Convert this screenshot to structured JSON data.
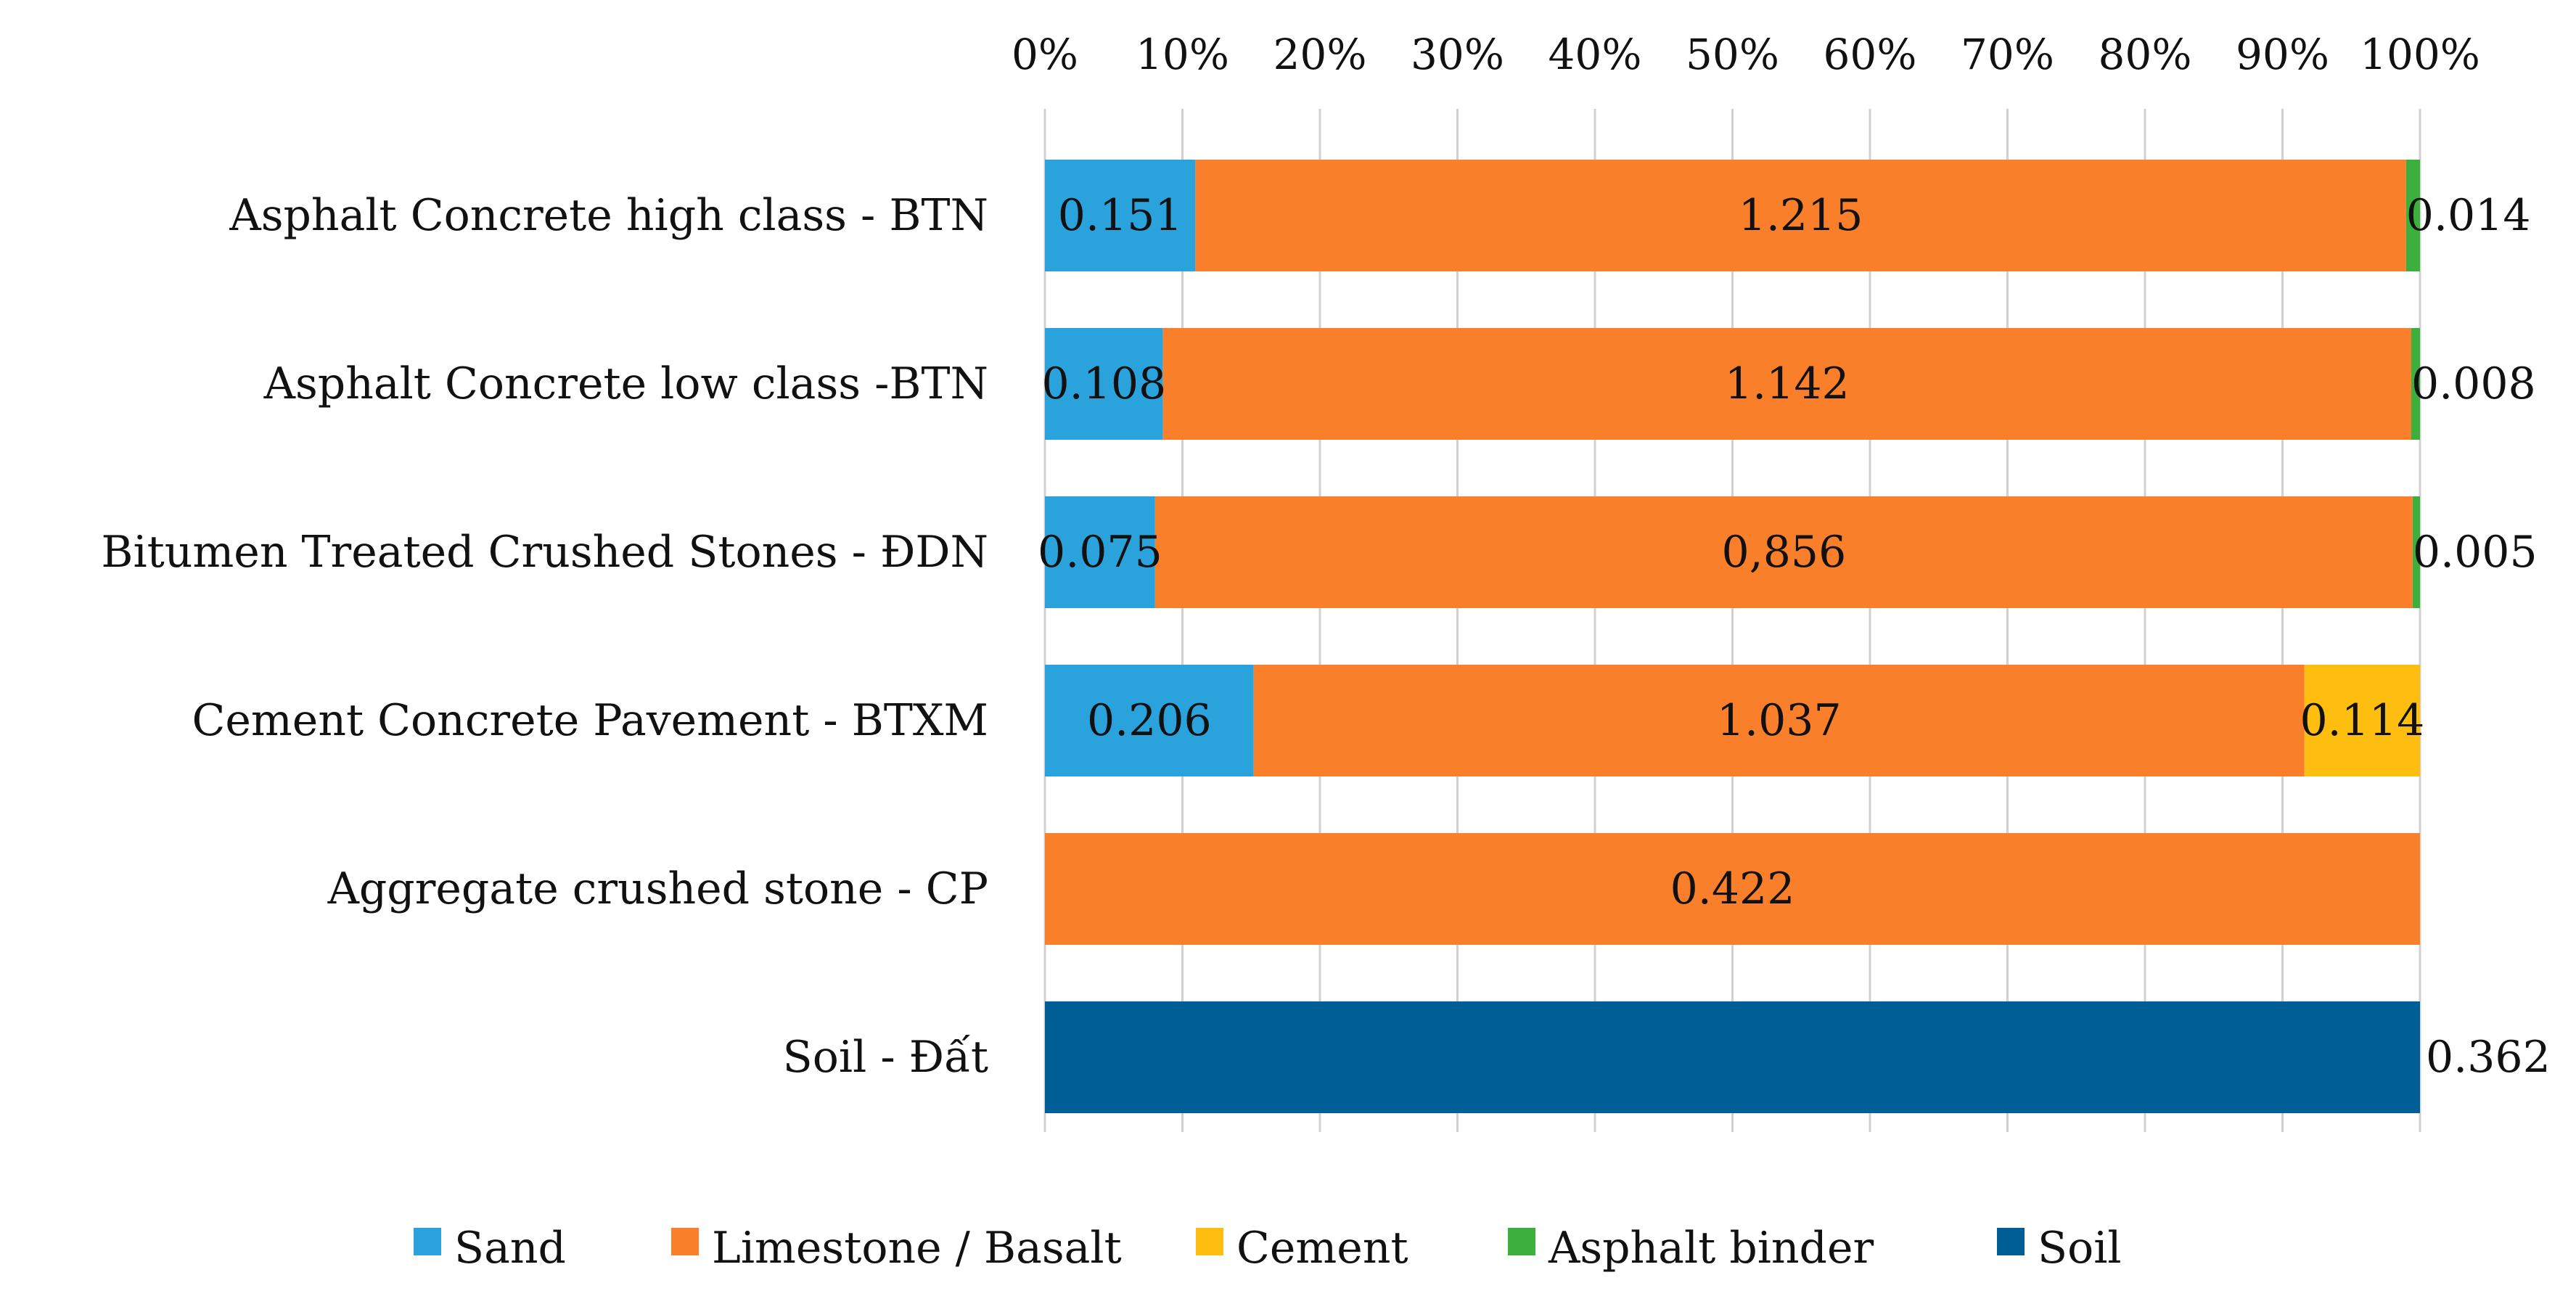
{
  "chart_data": {
    "type": "bar",
    "orientation": "horizontal",
    "stacked": "percent",
    "title": "",
    "xlabel": "",
    "ylabel": "",
    "xlim": [
      0,
      100
    ],
    "x_ticks": [
      "0%",
      "10%",
      "20%",
      "30%",
      "40%",
      "50%",
      "60%",
      "70%",
      "80%",
      "90%",
      "100%"
    ],
    "x_axis_position": "top",
    "grid": true,
    "legend_position": "bottom",
    "categories": [
      "Asphalt Concrete high class - BTN",
      "Asphalt Concrete low class -BTN",
      "Bitumen Treated Crushed Stones - ĐDN",
      "Cement Concrete Pavement - BTXM",
      "Aggregate crushed stone - CP",
      "Soil - Đất"
    ],
    "series": [
      {
        "name": "Sand",
        "color": "#2aa3dd",
        "values": [
          0.151,
          0.108,
          0.075,
          0.206,
          0,
          0
        ],
        "labels": [
          "0.151",
          "0.108",
          "0.075",
          "0.206",
          "",
          ""
        ]
      },
      {
        "name": "Limestone / Basalt",
        "color": "#fa7f2a",
        "values": [
          1.215,
          1.142,
          0.856,
          1.037,
          0.422,
          0
        ],
        "labels": [
          "1.215",
          "1.142",
          "0,856",
          "1.037",
          "0.422",
          ""
        ]
      },
      {
        "name": "Cement",
        "color": "#fdbe10",
        "values": [
          0,
          0,
          0,
          0.114,
          0,
          0
        ],
        "labels": [
          "",
          "",
          "",
          "0.114",
          "",
          ""
        ]
      },
      {
        "name": "Asphalt binder",
        "color": "#3daf3d",
        "values": [
          0.014,
          0.008,
          0.005,
          0,
          0,
          0
        ],
        "labels": [
          "0.014",
          "0.008",
          "0.005",
          "",
          "",
          ""
        ]
      },
      {
        "name": "Soil",
        "color": "#005e96",
        "values": [
          0,
          0,
          0,
          0,
          0,
          0.362
        ],
        "labels": [
          "",
          "",
          "",
          "",
          "",
          "0.362"
        ]
      }
    ]
  }
}
